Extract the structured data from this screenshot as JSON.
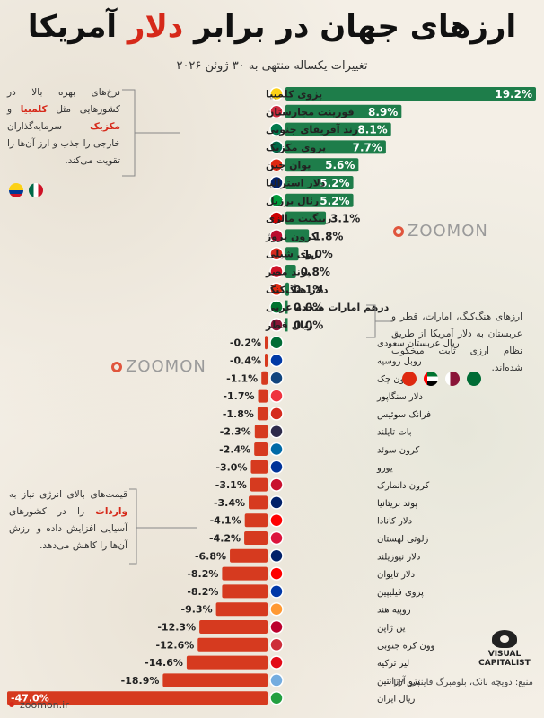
{
  "chart_data": {
    "type": "bar",
    "title_part1": "ارزهای جهان در برابر ",
    "title_highlight": "دلار",
    "title_part2": " آمریکا",
    "subtitle": "تغییرات یکساله منتهی به ۳۰ ژوئن ۲۰۲۶",
    "colors": {
      "positive": "#1e7d4a",
      "negative": "#d63a1f"
    },
    "categories": [
      "پزوی کلمبیا",
      "فورینت مجارستان",
      "رند آفریقای جنوبی",
      "پزوی مکزیک",
      "یوان چین",
      "دلار استرالیا",
      "رئال برزیل",
      "رینگیت مالزی",
      "کرون نروژ",
      "پزوی شیلی",
      "پوند مصر",
      "دلار هنگ‌کنگ",
      "درهم امارات متحده عربی",
      "ریال قطر",
      "ریال عربستان سعودی",
      "روبل روسیه",
      "کرون چک",
      "دلار سنگاپور",
      "فرانک سوئیس",
      "بات تایلند",
      "کرون سوئد",
      "یورو",
      "کرون دانمارک",
      "پوند بریتانیا",
      "دلار کانادا",
      "زلوتی لهستان",
      "دلار نیوزیلند",
      "دلار تایوان",
      "پزوی فیلیپین",
      "روپیه هند",
      "ین ژاپن",
      "وون کره جنوبی",
      "لیر ترکیه",
      "پزو آرژانتین",
      "ریال ایران"
    ],
    "values": [
      19.2,
      8.9,
      8.1,
      7.7,
      5.6,
      5.2,
      5.2,
      3.1,
      1.8,
      1.0,
      0.8,
      0.1,
      0.0,
      0.0,
      -0.2,
      -0.4,
      -1.1,
      -1.7,
      -1.8,
      -2.3,
      -2.4,
      -3.0,
      -3.1,
      -3.4,
      -4.1,
      -4.2,
      -6.8,
      -8.2,
      -8.2,
      -9.3,
      -12.3,
      -12.6,
      -14.6,
      -18.9,
      -47.0
    ],
    "value_labels": [
      "19.2%",
      "8.9%",
      "8.1%",
      "7.7%",
      "5.6%",
      "5.2%",
      "5.2%",
      "3.1%",
      "1.8%",
      "1.0%",
      "0.8%",
      "0.1%",
      "0.0%",
      "0.0%",
      "-0.2%",
      "-0.4%",
      "-1.1%",
      "-1.7%",
      "-1.8%",
      "-2.3%",
      "-2.4%",
      "-3.0%",
      "-3.1%",
      "-3.4%",
      "-4.1%",
      "-4.2%",
      "-6.8%",
      "-8.2%",
      "-8.2%",
      "-9.3%",
      "-12.3%",
      "-12.6%",
      "-14.6%",
      "-18.9%",
      "-47.0%"
    ]
  },
  "annotations": {
    "top_left": {
      "part1": "نرخ‌های بهره بالا در کشورهایی مثل ",
      "highlight1": "کلمبیا",
      "part2": " و ",
      "highlight2": "مکزیک",
      "part3": " سرمایه‌گذاران خارجی را جذب و ارز آن‌ها را تقویت می‌کند."
    },
    "right": "ارزهای هنگ‌کنگ، امارات، قطر و عربستان به دلار آمریکا از طریق نظام ارزی ثابت میخکوب شده‌اند.",
    "bottom_left": {
      "part1": "قیمت‌های بالای انرژی نیاز به ",
      "highlight": "واردات",
      "part2": " را در کشورهای آسیایی افزایش داده و ارزش آن‌ها را کاهش می‌دهد."
    }
  },
  "watermark": "ZOOMON",
  "logo_text": "VISUAL CAPITALIST",
  "source": "منبع: دویچه بانک، بلومبرگ فایننس LP",
  "footer": "zoomon.ir"
}
